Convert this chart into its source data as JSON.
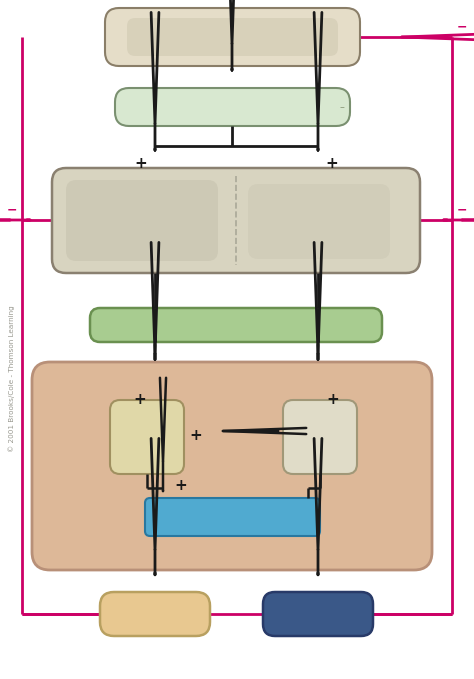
{
  "bg_color": "#ffffff",
  "pink": "#cc0066",
  "black": "#1a1a1a",
  "box1_color": "#e5ddc8",
  "box1_border": "#8a7e68",
  "box1_inner": "#cfc8b0",
  "box2_color": "#d8e8d0",
  "box2_border": "#7a9070",
  "box3_color": "#d8d4c0",
  "box3_border": "#8a8070",
  "box3_inner_l": "#c8c4b0",
  "box3_inner_r": "#ccc8b4",
  "box4_color": "#a8cc90",
  "box4_border": "#6a9050",
  "box5_color": "#ddb898",
  "box5_border": "#b89078",
  "sq1_color": "#e0d8a8",
  "sq1_border": "#a09060",
  "sq2_color": "#e0dcc8",
  "sq2_border": "#a09878",
  "blue_color": "#50aad0",
  "blue_border": "#2878a0",
  "bl_color": "#e8c890",
  "bl_border": "#b8a060",
  "br_color": "#3a5888",
  "br_border": "#283a68",
  "dashed_color": "#aaa898",
  "figsize": [
    4.74,
    6.79
  ],
  "dpi": 100
}
